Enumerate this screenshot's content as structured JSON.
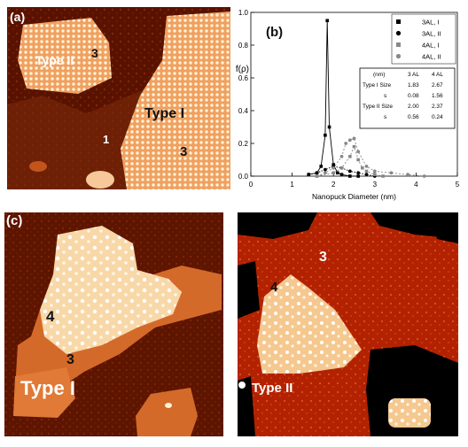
{
  "panels": {
    "a": {
      "label": "(a)",
      "annotations": [
        "Type II",
        "3",
        "Type I",
        "1",
        "3"
      ]
    },
    "b": {
      "label": "(b)"
    },
    "c": {
      "label": "(c)",
      "left_annotations": [
        "4",
        "3",
        "Type I"
      ],
      "right_annotations": [
        "3",
        "4",
        "Type II"
      ]
    }
  },
  "colors": {
    "terrace_dark": "#5a1200",
    "terrace_mid": "#c2541c",
    "island_light": "#f0b070",
    "island_top": "#ffe6b8",
    "right_bg": "#b32200"
  },
  "chart_data": {
    "type": "scatter",
    "xlabel": "Nanopuck Diameter (nm)",
    "ylabel": "f(ρ)",
    "xlim": [
      0,
      5
    ],
    "ylim": [
      0,
      1.0
    ],
    "xticks": [
      "0",
      "1",
      "2",
      "3",
      "4",
      "5"
    ],
    "yticks": [
      "0.0",
      "0.2",
      "0.4",
      "0.6",
      "0.8",
      "1.0"
    ],
    "legend_position": "top-right",
    "series": [
      {
        "name": "3AL, I",
        "marker": "square",
        "color": "#000000",
        "x": [
          1.4,
          1.6,
          1.7,
          1.8,
          1.85,
          1.9,
          2.0,
          2.1,
          2.2,
          2.4,
          2.6
        ],
        "y": [
          0.01,
          0.02,
          0.06,
          0.25,
          0.95,
          0.3,
          0.07,
          0.02,
          0.01,
          0.0,
          0.0
        ]
      },
      {
        "name": "3AL, II",
        "marker": "circle",
        "color": "#000000",
        "x": [
          1.4,
          1.6,
          1.8,
          2.0,
          2.2,
          2.4,
          2.6,
          2.8,
          3.0
        ],
        "y": [
          0.01,
          0.02,
          0.04,
          0.06,
          0.05,
          0.03,
          0.02,
          0.01,
          0.0
        ]
      },
      {
        "name": "4AL, I",
        "marker": "square",
        "color": "#888888",
        "x": [
          1.6,
          2.0,
          2.2,
          2.4,
          2.5,
          2.6,
          2.7,
          2.8,
          3.0,
          3.2
        ],
        "y": [
          0.0,
          0.02,
          0.05,
          0.12,
          0.18,
          0.1,
          0.05,
          0.03,
          0.01,
          0.0
        ]
      },
      {
        "name": "4AL, II",
        "marker": "circle",
        "color": "#888888",
        "x": [
          1.6,
          1.8,
          2.0,
          2.2,
          2.3,
          2.4,
          2.5,
          2.6,
          2.8,
          3.0,
          3.4,
          3.8,
          4.2
        ],
        "y": [
          0.0,
          0.02,
          0.05,
          0.12,
          0.2,
          0.22,
          0.23,
          0.15,
          0.06,
          0.03,
          0.02,
          0.01,
          0.0
        ]
      }
    ],
    "table": {
      "header": [
        "(nm)",
        "3 AL",
        "4 AL"
      ],
      "rows": [
        [
          "Type I  Size",
          "1.83",
          "2.67"
        ],
        [
          "s",
          "0.08",
          "1.56"
        ],
        [
          "Type II Size",
          "2.00",
          "2.37"
        ],
        [
          "s",
          "0.56",
          "0.24"
        ]
      ]
    }
  }
}
